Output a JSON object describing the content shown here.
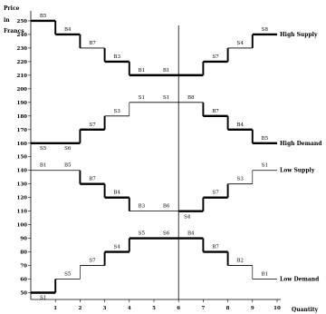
{
  "chart_data": {
    "type": "line",
    "step": true,
    "ylabel": "Price in Francs",
    "xlabel": "Quantity",
    "xlim": [
      0,
      10
    ],
    "ylim": [
      45,
      260
    ],
    "x_ticks": [
      1,
      2,
      3,
      4,
      5,
      6,
      7,
      8,
      9,
      10
    ],
    "y_ticks": [
      50,
      60,
      70,
      80,
      90,
      100,
      110,
      120,
      130,
      140,
      150,
      160,
      170,
      180,
      190,
      200,
      210,
      220,
      230,
      240,
      250
    ],
    "x_tick_labels": [
      "1",
      "2",
      "3",
      "4",
      "5",
      "6",
      "7",
      "8",
      "9",
      "10"
    ],
    "y_tick_labels": [
      "50",
      "60",
      "70",
      "80",
      "90",
      "100",
      "110",
      "120",
      "130",
      "140",
      "150",
      "160",
      "170",
      "180",
      "190",
      "200",
      "210",
      "220",
      "230",
      "240",
      "250"
    ],
    "vertical_line_x": 6,
    "series": [
      {
        "name": "High Supply",
        "steps": [
          {
            "x0": 6,
            "x1": 7,
            "y": 210,
            "label": "",
            "bold": true
          },
          {
            "x0": 7,
            "x1": 8,
            "y": 220,
            "label": "S7",
            "bold": true
          },
          {
            "x0": 8,
            "x1": 9,
            "y": 230,
            "label": "S4",
            "bold": false
          },
          {
            "x0": 9,
            "x1": 10,
            "y": 240,
            "label": "S8",
            "bold": true
          }
        ]
      },
      {
        "name": "",
        "steps": [
          {
            "x0": 0,
            "x1": 1,
            "y": 250,
            "label": "B5",
            "bold": true
          },
          {
            "x0": 1,
            "x1": 2,
            "y": 240,
            "label": "B4",
            "bold": true
          },
          {
            "x0": 2,
            "x1": 3,
            "y": 230,
            "label": "B7",
            "bold": false
          },
          {
            "x0": 3,
            "x1": 4,
            "y": 220,
            "label": "B3",
            "bold": true
          },
          {
            "x0": 4,
            "x1": 5,
            "y": 210,
            "label": "B1",
            "bold": true
          },
          {
            "x0": 5,
            "x1": 6,
            "y": 210,
            "label": "B1",
            "bold": true
          }
        ]
      },
      {
        "name": "High Demand",
        "steps": [
          {
            "x0": 6,
            "x1": 7,
            "y": 190,
            "label": "B8",
            "bold": false
          },
          {
            "x0": 7,
            "x1": 8,
            "y": 180,
            "label": "B7",
            "bold": true
          },
          {
            "x0": 8,
            "x1": 9,
            "y": 170,
            "label": "B4",
            "bold": true
          },
          {
            "x0": 9,
            "x1": 10,
            "y": 160,
            "label": "B5",
            "bold": true
          }
        ]
      },
      {
        "name": "",
        "steps": [
          {
            "x0": 0,
            "x1": 2,
            "y": 160,
            "label": "S5",
            "label2": "S6",
            "bold": true
          },
          {
            "x0": 2,
            "x1": 3,
            "y": 170,
            "label": "S7",
            "bold": true
          },
          {
            "x0": 3,
            "x1": 4,
            "y": 180,
            "label": "S3",
            "bold": false
          },
          {
            "x0": 4,
            "x1": 5,
            "y": 190,
            "label": "S1",
            "bold": false
          },
          {
            "x0": 5,
            "x1": 6,
            "y": 190,
            "label": "S1",
            "bold": false
          }
        ]
      },
      {
        "name": "Low Supply",
        "steps": [
          {
            "x0": 6,
            "x1": 7,
            "y": 110,
            "label": "S4",
            "bold": true
          },
          {
            "x0": 7,
            "x1": 8,
            "y": 120,
            "label": "S7",
            "bold": true
          },
          {
            "x0": 8,
            "x1": 9,
            "y": 130,
            "label": "S3",
            "bold": false
          },
          {
            "x0": 9,
            "x1": 10,
            "y": 140,
            "label": "S1",
            "bold": false
          }
        ]
      },
      {
        "name": "",
        "steps": [
          {
            "x0": 0,
            "x1": 2,
            "y": 140,
            "label": "B1",
            "label2": "B5",
            "bold": false
          },
          {
            "x0": 2,
            "x1": 3,
            "y": 130,
            "label": "B7",
            "bold": true
          },
          {
            "x0": 3,
            "x1": 4,
            "y": 120,
            "label": "B4",
            "bold": true
          },
          {
            "x0": 4,
            "x1": 5,
            "y": 110,
            "label": "B3",
            "bold": false
          },
          {
            "x0": 5,
            "x1": 6,
            "y": 110,
            "label": "B6",
            "bold": false
          }
        ]
      },
      {
        "name": "Low Demand",
        "steps": [
          {
            "x0": 6,
            "x1": 7,
            "y": 90,
            "label": "B4",
            "bold": true
          },
          {
            "x0": 7,
            "x1": 8,
            "y": 80,
            "label": "B7",
            "bold": true
          },
          {
            "x0": 8,
            "x1": 9,
            "y": 70,
            "label": "B2",
            "bold": false
          },
          {
            "x0": 9,
            "x1": 10,
            "y": 60,
            "label": "B1",
            "bold": false
          }
        ]
      },
      {
        "name": "",
        "steps": [
          {
            "x0": 0,
            "x1": 1,
            "y": 50,
            "label": "S1",
            "bold": true
          },
          {
            "x0": 1,
            "x1": 2,
            "y": 60,
            "label": "S5",
            "bold": false
          },
          {
            "x0": 2,
            "x1": 3,
            "y": 70,
            "label": "S7",
            "bold": false
          },
          {
            "x0": 3,
            "x1": 4,
            "y": 80,
            "label": "S4",
            "bold": true
          },
          {
            "x0": 4,
            "x1": 5,
            "y": 90,
            "label": "S5",
            "bold": true
          },
          {
            "x0": 5,
            "x1": 6,
            "y": 90,
            "label": "S6",
            "bold": true
          }
        ]
      }
    ]
  }
}
